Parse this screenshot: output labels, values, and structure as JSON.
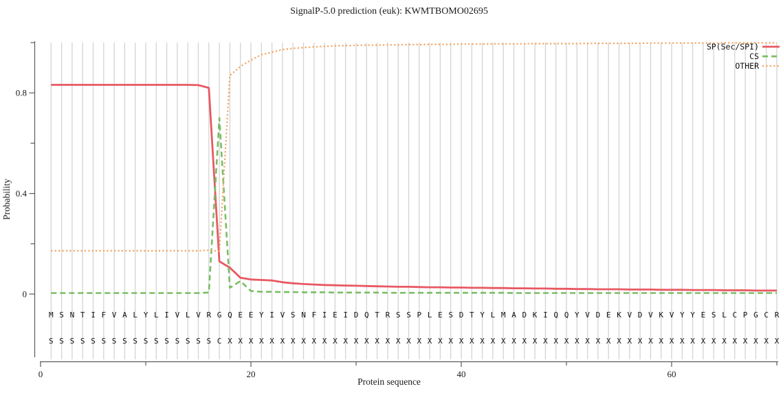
{
  "title": "SignalP-5.0 prediction (euk):  KWMTBOMO02695",
  "chart_data": {
    "type": "line",
    "title": "SignalP-5.0 prediction (euk):  KWMTBOMO02695",
    "xlabel": "Protein sequence",
    "ylabel": "Probability",
    "xlim": [
      0,
      70.2
    ],
    "ylim": [
      0,
      1.0
    ],
    "xticks_major": [
      0,
      20,
      40,
      60
    ],
    "xticks_minor": [
      10,
      30,
      50,
      70
    ],
    "yticks_major": [
      0,
      0.4,
      0.8
    ],
    "yticks_minor": [
      0.2,
      0.6,
      1.0
    ],
    "grid": "vertical line at every residue position",
    "legend_position": "top-right",
    "n_residues": 70,
    "sequence": [
      "M",
      "S",
      "N",
      "T",
      "I",
      "F",
      "V",
      "A",
      "L",
      "Y",
      "L",
      "I",
      "V",
      "L",
      "V",
      "R",
      "G",
      "Q",
      "E",
      "E",
      "Y",
      "I",
      "V",
      "S",
      "N",
      "F",
      "I",
      "E",
      "I",
      "D",
      "Q",
      "T",
      "R",
      "S",
      "S",
      "P",
      "L",
      "E",
      "S",
      "D",
      "T",
      "Y",
      "L",
      "M",
      "A",
      "D",
      "K",
      "I",
      "Q",
      "Q",
      "Y",
      "V",
      "D",
      "E",
      "K",
      "V",
      "D",
      "V",
      "K",
      "V",
      "Y",
      "Y",
      "E",
      "S",
      "L",
      "C",
      "P",
      "G",
      "C",
      "R"
    ],
    "annotation": [
      "S",
      "S",
      "S",
      "S",
      "S",
      "S",
      "S",
      "S",
      "S",
      "S",
      "S",
      "S",
      "S",
      "S",
      "S",
      "S",
      "C",
      "X",
      "X",
      "X",
      "X",
      "X",
      "X",
      "X",
      "X",
      "X",
      "X",
      "X",
      "X",
      "X",
      "X",
      "X",
      "X",
      "X",
      "X",
      "X",
      "X",
      "X",
      "X",
      "X",
      "X",
      "X",
      "X",
      "X",
      "X",
      "X",
      "X",
      "X",
      "X",
      "X",
      "X",
      "X",
      "X",
      "X",
      "X",
      "X",
      "X",
      "X",
      "X",
      "X",
      "X",
      "X",
      "X",
      "X",
      "X",
      "X",
      "X",
      "X",
      "X",
      "X"
    ],
    "series": [
      {
        "name": "SP(Sec/SPI)",
        "color": "#e85862",
        "style": "solid",
        "values": [
          0.832,
          0.832,
          0.832,
          0.832,
          0.832,
          0.832,
          0.832,
          0.832,
          0.832,
          0.832,
          0.832,
          0.832,
          0.832,
          0.832,
          0.831,
          0.82,
          0.13,
          0.105,
          0.065,
          0.058,
          0.056,
          0.054,
          0.047,
          0.043,
          0.04,
          0.038,
          0.036,
          0.035,
          0.034,
          0.033,
          0.032,
          0.031,
          0.03,
          0.029,
          0.029,
          0.028,
          0.027,
          0.027,
          0.026,
          0.026,
          0.025,
          0.025,
          0.024,
          0.024,
          0.023,
          0.023,
          0.022,
          0.022,
          0.021,
          0.021,
          0.02,
          0.02,
          0.019,
          0.019,
          0.019,
          0.018,
          0.018,
          0.018,
          0.017,
          0.017,
          0.017,
          0.016,
          0.016,
          0.016,
          0.015,
          0.015,
          0.015,
          0.014,
          0.014,
          0.014
        ]
      },
      {
        "name": "CS",
        "color": "#78be64",
        "style": "dashed",
        "values": [
          0.004,
          0.004,
          0.004,
          0.004,
          0.004,
          0.004,
          0.004,
          0.004,
          0.004,
          0.004,
          0.004,
          0.004,
          0.004,
          0.004,
          0.004,
          0.006,
          0.7,
          0.025,
          0.052,
          0.012,
          0.009,
          0.009,
          0.008,
          0.008,
          0.007,
          0.007,
          0.007,
          0.006,
          0.006,
          0.006,
          0.006,
          0.006,
          0.005,
          0.005,
          0.005,
          0.005,
          0.005,
          0.005,
          0.005,
          0.005,
          0.005,
          0.005,
          0.005,
          0.005,
          0.004,
          0.004,
          0.004,
          0.004,
          0.004,
          0.004,
          0.004,
          0.004,
          0.004,
          0.004,
          0.004,
          0.004,
          0.004,
          0.004,
          0.004,
          0.004,
          0.004,
          0.004,
          0.004,
          0.004,
          0.004,
          0.004,
          0.004,
          0.004,
          0.004,
          0.004
        ]
      },
      {
        "name": "OTHER",
        "color": "#f4a460",
        "style": "dotted",
        "values": [
          0.172,
          0.172,
          0.172,
          0.172,
          0.172,
          0.172,
          0.172,
          0.172,
          0.172,
          0.172,
          0.172,
          0.172,
          0.172,
          0.172,
          0.172,
          0.174,
          0.17,
          0.87,
          0.905,
          0.93,
          0.952,
          0.962,
          0.972,
          0.977,
          0.98,
          0.983,
          0.985,
          0.987,
          0.988,
          0.989,
          0.99,
          0.99,
          0.991,
          0.991,
          0.992,
          0.992,
          0.993,
          0.993,
          0.993,
          0.994,
          0.994,
          0.994,
          0.995,
          0.995,
          0.995,
          0.995,
          0.996,
          0.996,
          0.996,
          0.996,
          0.996,
          0.997,
          0.997,
          0.997,
          0.997,
          0.997,
          0.997,
          0.998,
          0.998,
          0.998,
          0.998,
          0.998,
          0.998,
          0.998,
          0.999,
          0.999,
          0.999,
          0.999,
          0.999,
          0.999
        ]
      }
    ]
  },
  "colors": {
    "grid": "#d3d3d3",
    "axis": "#5a5a5a",
    "text": "#1a1a1a"
  }
}
